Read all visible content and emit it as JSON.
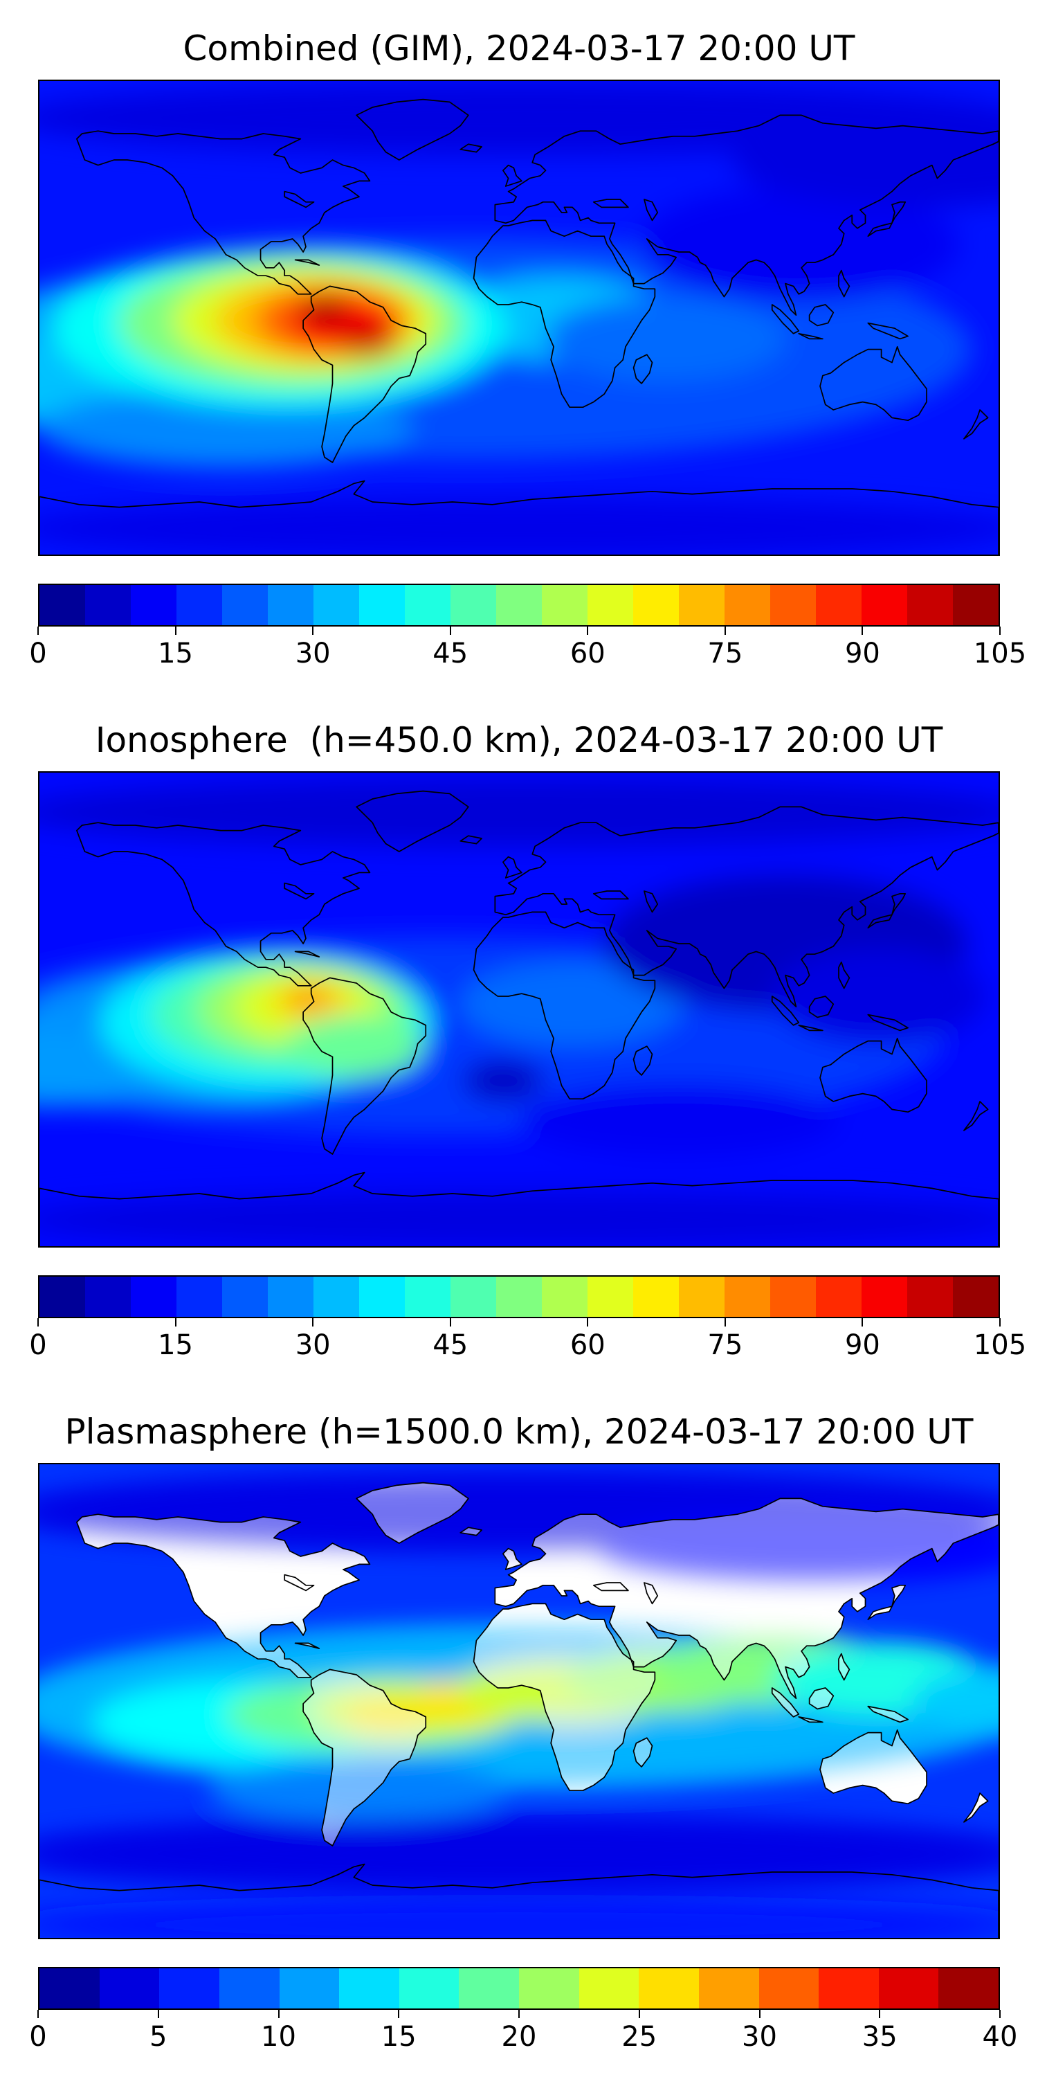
{
  "chart_data": [
    {
      "type": "heatmap",
      "title": "Combined (GIM), 2024-03-17 20:00 UT",
      "projection": "equirectangular",
      "lon_range": [
        -180,
        180
      ],
      "lat_range": [
        -90,
        90
      ],
      "colormap": "jet",
      "background_value": 15,
      "colorbar": {
        "orientation": "horizontal",
        "min": 0,
        "max": 105,
        "segments": 21,
        "ticks": [
          0,
          15,
          30,
          45,
          60,
          75,
          90,
          105
        ]
      },
      "land_fill": null,
      "features": [
        {
          "lon": -20,
          "lat": -12,
          "rx": 190,
          "ry": 42,
          "v": 21
        },
        {
          "lon": -150,
          "lat": -8,
          "rx": 55,
          "ry": 22,
          "v": 30
        },
        {
          "lon": -175,
          "lat": -25,
          "rx": 45,
          "ry": 16,
          "v": 33
        },
        {
          "lon": -110,
          "lat": -42,
          "rx": 70,
          "ry": 15,
          "v": 27
        },
        {
          "lon": 15,
          "lat": 0,
          "rx": 40,
          "ry": 16,
          "v": 33
        },
        {
          "lon": 55,
          "lat": -8,
          "rx": 45,
          "ry": 16,
          "v": 24
        },
        {
          "lon": -90,
          "lat": -4,
          "rx": 85,
          "ry": 30,
          "v": 40
        },
        {
          "lon": -85,
          "lat": -2,
          "rx": 65,
          "ry": 25,
          "v": 52
        },
        {
          "lon": -80,
          "lat": -1,
          "rx": 50,
          "ry": 20,
          "v": 62
        },
        {
          "lon": -76,
          "lat": -1,
          "rx": 38,
          "ry": 16,
          "v": 72
        },
        {
          "lon": -71,
          "lat": -1,
          "rx": 28,
          "ry": 13,
          "v": 82
        },
        {
          "lon": -67,
          "lat": -2,
          "rx": 19,
          "ry": 10,
          "v": 92
        },
        {
          "lon": -73,
          "lat": 3,
          "rx": 9,
          "ry": 5,
          "v": 101
        },
        {
          "lon": -57,
          "lat": -9,
          "rx": 11,
          "ry": 6,
          "v": 97
        },
        {
          "lon": 105,
          "lat": 28,
          "rx": 60,
          "ry": 22,
          "v": 12
        },
        {
          "lon": 0,
          "lat": 76,
          "rx": 190,
          "ry": 14,
          "v": 10
        },
        {
          "lon": 150,
          "lat": 60,
          "rx": 70,
          "ry": 18,
          "v": 10
        },
        {
          "lon": 0,
          "lat": -80,
          "rx": 190,
          "ry": 12,
          "v": 11
        }
      ]
    },
    {
      "type": "heatmap",
      "title": "Ionosphere  (h=450.0 km), 2024-03-17 20:00 UT",
      "projection": "equirectangular",
      "lon_range": [
        -180,
        180
      ],
      "lat_range": [
        -90,
        90
      ],
      "colormap": "jet",
      "background_value": 14,
      "colorbar": {
        "orientation": "horizontal",
        "min": 0,
        "max": 105,
        "segments": 21,
        "ticks": [
          0,
          15,
          30,
          45,
          60,
          75,
          90,
          105
        ]
      },
      "land_fill": null,
      "features": [
        {
          "lon": -30,
          "lat": -10,
          "rx": 190,
          "ry": 38,
          "v": 19
        },
        {
          "lon": -120,
          "lat": -10,
          "rx": 70,
          "ry": 26,
          "v": 28
        },
        {
          "lon": -175,
          "lat": -22,
          "rx": 40,
          "ry": 15,
          "v": 29
        },
        {
          "lon": 20,
          "lat": 2,
          "rx": 42,
          "ry": 16,
          "v": 24
        },
        {
          "lon": -95,
          "lat": -5,
          "rx": 62,
          "ry": 26,
          "v": 38
        },
        {
          "lon": -88,
          "lat": -2,
          "rx": 50,
          "ry": 21,
          "v": 47
        },
        {
          "lon": -83,
          "lat": 0,
          "rx": 38,
          "ry": 17,
          "v": 55
        },
        {
          "lon": -80,
          "lat": 1,
          "rx": 27,
          "ry": 13,
          "v": 62
        },
        {
          "lon": -78,
          "lat": 3,
          "rx": 15,
          "ry": 8,
          "v": 70
        },
        {
          "lon": -79,
          "lat": 4,
          "rx": 7,
          "ry": 4,
          "v": 78
        },
        {
          "lon": -62,
          "lat": -14,
          "rx": 26,
          "ry": 12,
          "v": 50
        },
        {
          "lon": 100,
          "lat": 25,
          "rx": 68,
          "ry": 26,
          "v": 7
        },
        {
          "lon": 135,
          "lat": 5,
          "rx": 40,
          "ry": 18,
          "v": 10
        },
        {
          "lon": -6,
          "lat": -27,
          "rx": 15,
          "ry": 8,
          "v": 7
        },
        {
          "lon": 0,
          "lat": 75,
          "rx": 190,
          "ry": 13,
          "v": 9
        },
        {
          "lon": 0,
          "lat": -80,
          "rx": 190,
          "ry": 11,
          "v": 10
        },
        {
          "lon": 60,
          "lat": -42,
          "rx": 60,
          "ry": 14,
          "v": 12
        }
      ]
    },
    {
      "type": "heatmap",
      "title": "Plasmasphere (h=1500.0 km), 2024-03-17 20:00 UT",
      "projection": "equirectangular",
      "lon_range": [
        -180,
        180
      ],
      "lat_range": [
        -90,
        90
      ],
      "colormap": "jet",
      "background_value": 7,
      "colorbar": {
        "orientation": "horizontal",
        "min": 0,
        "max": 40,
        "segments": 16,
        "ticks": [
          0,
          5,
          10,
          15,
          20,
          25,
          30,
          35,
          40
        ]
      },
      "land_fill": "#ffffff",
      "land_overlay_opacity": 0.55,
      "features": [
        {
          "lon": 0,
          "lat": -2,
          "rx": 190,
          "ry": 30,
          "v": 12
        },
        {
          "lon": -100,
          "lat": -8,
          "rx": 60,
          "ry": 16,
          "v": 15
        },
        {
          "lon": -55,
          "lat": -5,
          "rx": 55,
          "ry": 14,
          "v": 19
        },
        {
          "lon": -40,
          "lat": -3,
          "rx": 38,
          "ry": 11,
          "v": 23
        },
        {
          "lon": -50,
          "lat": -6,
          "rx": 16,
          "ry": 7,
          "v": 26
        },
        {
          "lon": -15,
          "lat": 0,
          "rx": 24,
          "ry": 9,
          "v": 26
        },
        {
          "lon": 18,
          "lat": 4,
          "rx": 42,
          "ry": 12,
          "v": 23
        },
        {
          "lon": 55,
          "lat": 8,
          "rx": 38,
          "ry": 12,
          "v": 21
        },
        {
          "lon": 95,
          "lat": 12,
          "rx": 45,
          "ry": 13,
          "v": 20
        },
        {
          "lon": 135,
          "lat": 8,
          "rx": 40,
          "ry": 13,
          "v": 16
        },
        {
          "lon": 178,
          "lat": 0,
          "rx": 30,
          "ry": 12,
          "v": 13
        },
        {
          "lon": -60,
          "lat": -33,
          "rx": 55,
          "ry": 12,
          "v": 10
        },
        {
          "lon": 0,
          "lat": 72,
          "rx": 190,
          "ry": 14,
          "v": 4
        },
        {
          "lon": 110,
          "lat": 58,
          "rx": 80,
          "ry": 12,
          "v": 5
        },
        {
          "lon": 0,
          "lat": -58,
          "rx": 190,
          "ry": 13,
          "v": 4
        },
        {
          "lon": 0,
          "lat": -85,
          "rx": 190,
          "ry": 8,
          "v": 6
        }
      ]
    }
  ]
}
